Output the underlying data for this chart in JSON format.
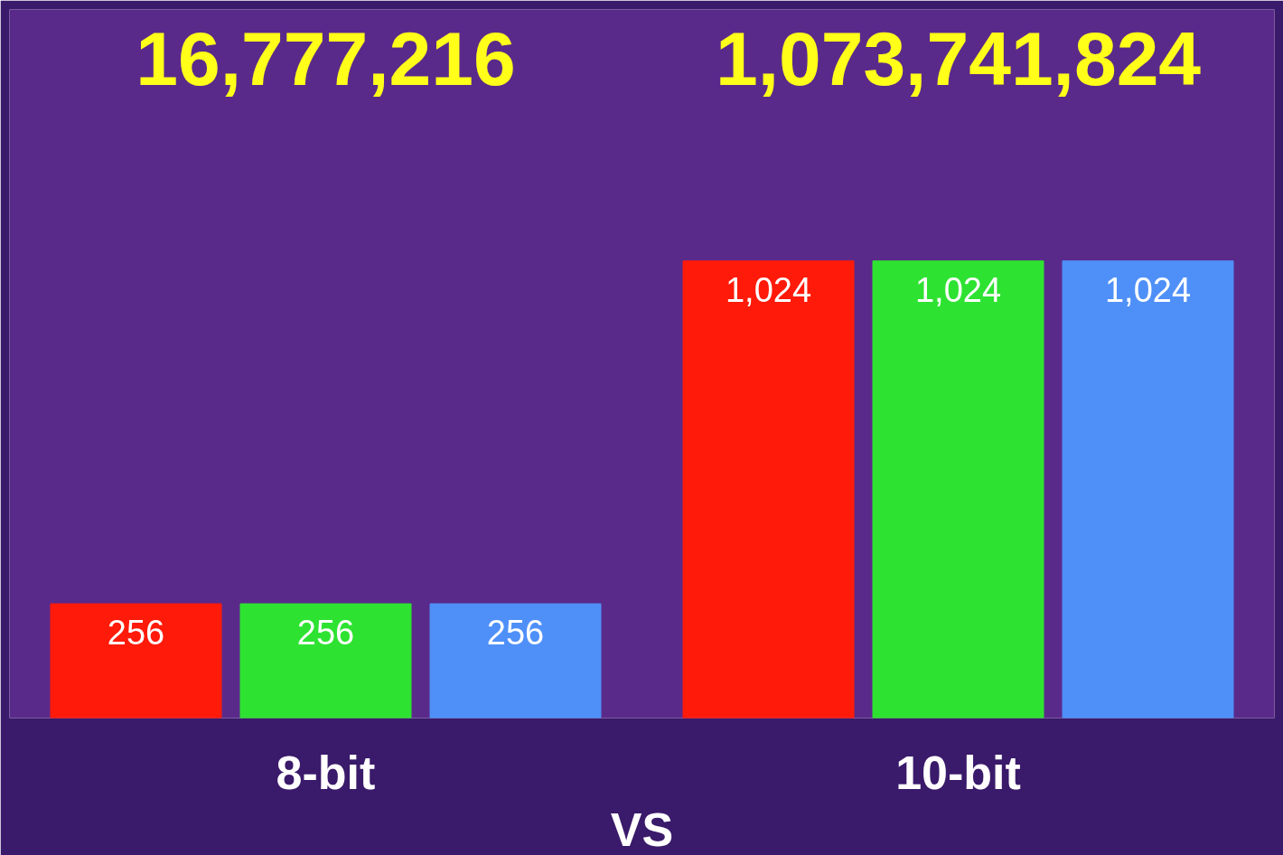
{
  "chart_data": {
    "type": "bar",
    "categories": [
      "8-bit",
      "10-bit"
    ],
    "series": [
      {
        "color": "#ff1a0a",
        "values": [
          256,
          1024
        ],
        "value_labels": [
          "256",
          "1,024"
        ]
      },
      {
        "color": "#2ee232",
        "values": [
          256,
          1024
        ],
        "value_labels": [
          "256",
          "1,024"
        ]
      },
      {
        "color": "#4f90f8",
        "values": [
          256,
          1024
        ],
        "value_labels": [
          "256",
          "1,024"
        ]
      }
    ],
    "annotations": [
      "16,777,216",
      "1,073,741,824",
      "VS"
    ],
    "grid": false
  }
}
